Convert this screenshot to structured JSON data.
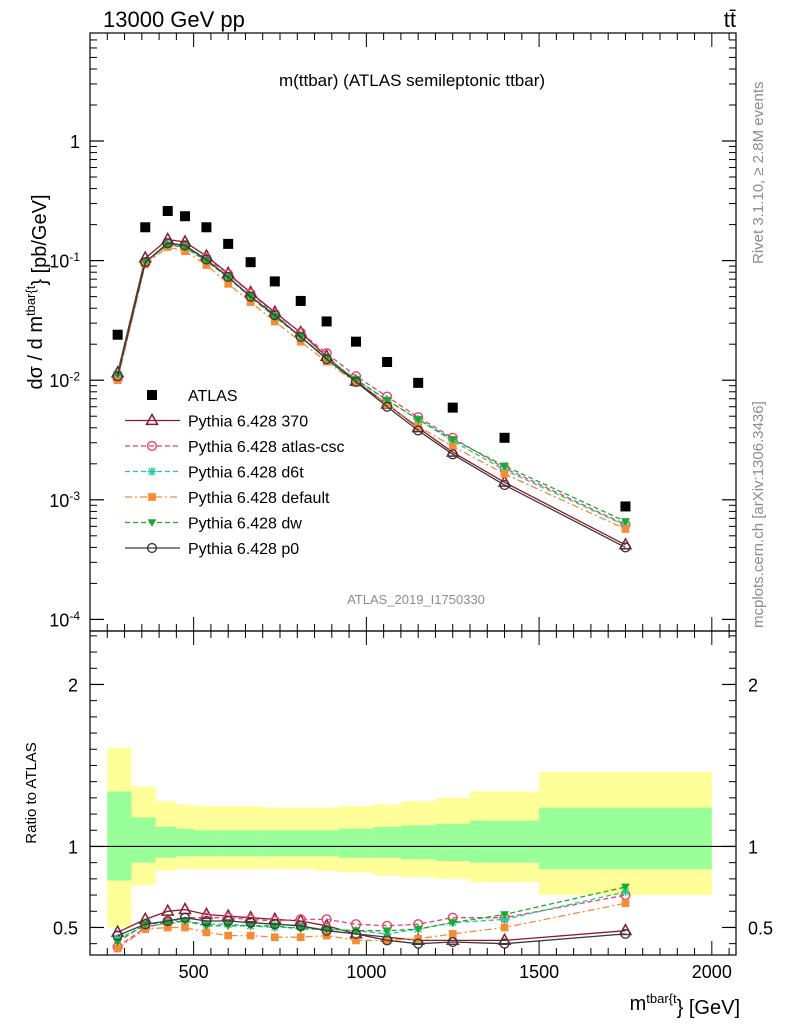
{
  "header": {
    "left": "13000 GeV pp",
    "right": "tt̄"
  },
  "side_labels": {
    "top": "Rivet 3.1.10, ≥ 2.8M events",
    "bottom": "mcplots.cern.ch [arXiv:1306.3436]"
  },
  "watermark": "ATLAS_2019_I1750330",
  "chart_data": [
    {
      "type": "scatter",
      "panel": "main",
      "title": "m(ttbar) (ATLAS semileptonic ttbar)",
      "ylabel": "dσ / d m^{tbar{t}} [pb/GeV]",
      "yscale": "log",
      "xlim": [
        200,
        2070
      ],
      "ylim": [
        8e-05,
        8
      ],
      "yticks": [
        {
          "v": 1,
          "label": "1"
        },
        {
          "v": 0.1,
          "label": "10^{-1}"
        },
        {
          "v": 0.01,
          "label": "10^{-2}"
        },
        {
          "v": 0.001,
          "label": "10^{-3}"
        },
        {
          "v": 0.0001,
          "label": "10^{-4}"
        }
      ],
      "legend_position": "bottom-left",
      "x": [
        280,
        360,
        425,
        475,
        537,
        600,
        665,
        735,
        810,
        885,
        970,
        1060,
        1150,
        1250,
        1400,
        1750
      ],
      "data": {
        "name": "ATLAS",
        "color": "#000000",
        "values": [
          0.024,
          0.19,
          0.26,
          0.235,
          0.19,
          0.138,
          0.097,
          0.067,
          0.046,
          0.031,
          0.021,
          0.0142,
          0.0095,
          0.0059,
          0.0033,
          0.00088
        ]
      },
      "series": [
        {
          "name": "Pythia 6.428 370",
          "color": "#8b1a2e",
          "dash": "",
          "marker": "triangle-open",
          "values": [
            0.0115,
            0.105,
            0.15,
            0.143,
            0.109,
            0.078,
            0.054,
            0.037,
            0.025,
            0.0158,
            0.0098,
            0.0063,
            0.004,
            0.0025,
            0.0014,
            0.00042
          ]
        },
        {
          "name": "Pythia 6.428 atlas-csc",
          "color": "#e8436e",
          "dash": "5,3",
          "marker": "circle-open",
          "values": [
            0.0103,
            0.095,
            0.138,
            0.13,
            0.105,
            0.077,
            0.053,
            0.036,
            0.025,
            0.0168,
            0.0108,
            0.0073,
            0.0049,
            0.0033,
            0.00184,
            0.00062
          ]
        },
        {
          "name": "Pythia 6.428 d6t",
          "color": "#20c9a0",
          "dash": "5,3",
          "marker": "star",
          "values": [
            0.0108,
            0.097,
            0.136,
            0.128,
            0.099,
            0.072,
            0.049,
            0.034,
            0.023,
            0.0153,
            0.0102,
            0.0068,
            0.0047,
            0.0031,
            0.00178,
            0.00061
          ]
        },
        {
          "name": "Pythia 6.428 default",
          "color": "#f58b33",
          "dash": "7,3,2,3",
          "marker": "square",
          "values": [
            0.01,
            0.093,
            0.13,
            0.12,
            0.092,
            0.064,
            0.045,
            0.031,
            0.021,
            0.0143,
            0.0095,
            0.0063,
            0.0041,
            0.0028,
            0.00165,
            0.00057
          ]
        },
        {
          "name": "Pythia 6.428 dw",
          "color": "#1aaa2a",
          "dash": "5,3",
          "marker": "triangle-down",
          "values": [
            0.0112,
            0.098,
            0.135,
            0.13,
            0.1,
            0.072,
            0.05,
            0.034,
            0.023,
            0.0154,
            0.0101,
            0.0068,
            0.0047,
            0.0032,
            0.00192,
            0.00066
          ]
        },
        {
          "name": "Pythia 6.428 p0",
          "color": "#3a3a3a",
          "dash": "",
          "marker": "circle-open",
          "values": [
            0.0108,
            0.097,
            0.14,
            0.134,
            0.102,
            0.073,
            0.05,
            0.035,
            0.023,
            0.015,
            0.0097,
            0.006,
            0.0038,
            0.0024,
            0.00133,
            0.0004
          ]
        }
      ]
    },
    {
      "type": "line",
      "panel": "ratio",
      "ylabel": "Ratio to ATLAS",
      "xlabel": "m^{tbar{t}} [GeV]",
      "xlim": [
        200,
        2070
      ],
      "ylim": [
        0.33,
        2.33
      ],
      "xticks": [
        500,
        1000,
        1500,
        2000
      ],
      "yticks": [
        {
          "v": 0.5,
          "label": "0.5"
        },
        {
          "v": 1,
          "label": "1"
        },
        {
          "v": 2,
          "label": "2"
        }
      ],
      "bands": [
        {
          "lo": 250,
          "hi": 320,
          "inner": [
            0.79,
            1.34
          ],
          "outer": [
            0.5,
            1.61
          ]
        },
        {
          "lo": 320,
          "hi": 390,
          "inner": [
            0.9,
            1.18
          ],
          "outer": [
            0.76,
            1.37
          ]
        },
        {
          "lo": 390,
          "hi": 450,
          "inner": [
            0.93,
            1.12
          ],
          "outer": [
            0.85,
            1.28
          ]
        },
        {
          "lo": 450,
          "hi": 500,
          "inner": [
            0.94,
            1.11
          ],
          "outer": [
            0.86,
            1.26
          ]
        },
        {
          "lo": 500,
          "hi": 570,
          "inner": [
            0.94,
            1.1
          ],
          "outer": [
            0.86,
            1.25
          ]
        },
        {
          "lo": 570,
          "hi": 630,
          "inner": [
            0.94,
            1.1
          ],
          "outer": [
            0.86,
            1.25
          ]
        },
        {
          "lo": 630,
          "hi": 700,
          "inner": [
            0.94,
            1.1
          ],
          "outer": [
            0.86,
            1.25
          ]
        },
        {
          "lo": 700,
          "hi": 770,
          "inner": [
            0.94,
            1.1
          ],
          "outer": [
            0.86,
            1.24
          ]
        },
        {
          "lo": 770,
          "hi": 850,
          "inner": [
            0.94,
            1.1
          ],
          "outer": [
            0.86,
            1.24
          ]
        },
        {
          "lo": 850,
          "hi": 920,
          "inner": [
            0.94,
            1.1
          ],
          "outer": [
            0.85,
            1.24
          ]
        },
        {
          "lo": 920,
          "hi": 1020,
          "inner": [
            0.93,
            1.11
          ],
          "outer": [
            0.84,
            1.25
          ]
        },
        {
          "lo": 1020,
          "hi": 1100,
          "inner": [
            0.93,
            1.12
          ],
          "outer": [
            0.82,
            1.26
          ]
        },
        {
          "lo": 1100,
          "hi": 1200,
          "inner": [
            0.92,
            1.13
          ],
          "outer": [
            0.81,
            1.28
          ]
        },
        {
          "lo": 1200,
          "hi": 1300,
          "inner": [
            0.91,
            1.14
          ],
          "outer": [
            0.8,
            1.3
          ]
        },
        {
          "lo": 1300,
          "hi": 1500,
          "inner": [
            0.9,
            1.16
          ],
          "outer": [
            0.78,
            1.34
          ]
        },
        {
          "lo": 1500,
          "hi": 2000,
          "inner": [
            0.86,
            1.24
          ],
          "outer": [
            0.7,
            1.46
          ]
        }
      ],
      "x": [
        280,
        360,
        425,
        475,
        537,
        600,
        665,
        735,
        810,
        885,
        970,
        1060,
        1150,
        1250,
        1400,
        1750
      ],
      "series": [
        {
          "name": "Pythia 6.428 370",
          "color": "#8b1a2e",
          "dash": "",
          "marker": "triangle-open",
          "values": [
            0.47,
            0.55,
            0.6,
            0.61,
            0.58,
            0.57,
            0.56,
            0.55,
            0.54,
            0.51,
            0.46,
            0.44,
            0.42,
            0.42,
            0.42,
            0.48
          ]
        },
        {
          "name": "Pythia 6.428 atlas-csc",
          "color": "#e8436e",
          "dash": "5,3",
          "marker": "circle-open",
          "values": [
            0.38,
            0.5,
            0.53,
            0.56,
            0.56,
            0.56,
            0.55,
            0.54,
            0.55,
            0.55,
            0.52,
            0.51,
            0.52,
            0.56,
            0.56,
            0.7
          ]
        },
        {
          "name": "Pythia 6.428 d6t",
          "color": "#20c9a0",
          "dash": "5,3",
          "marker": "star",
          "values": [
            0.43,
            0.51,
            0.52,
            0.54,
            0.52,
            0.52,
            0.51,
            0.5,
            0.5,
            0.49,
            0.48,
            0.46,
            0.49,
            0.53,
            0.55,
            0.72
          ]
        },
        {
          "name": "Pythia 6.428 default",
          "color": "#f58b33",
          "dash": "7,3,2,3",
          "marker": "square",
          "values": [
            0.37,
            0.49,
            0.5,
            0.5,
            0.47,
            0.45,
            0.45,
            0.44,
            0.44,
            0.45,
            0.42,
            0.42,
            0.43,
            0.46,
            0.5,
            0.65
          ]
        },
        {
          "name": "Pythia 6.428 dw",
          "color": "#1aaa2a",
          "dash": "5,3",
          "marker": "triangle-down",
          "values": [
            0.41,
            0.52,
            0.53,
            0.54,
            0.51,
            0.51,
            0.51,
            0.51,
            0.49,
            0.49,
            0.48,
            0.48,
            0.49,
            0.53,
            0.58,
            0.75
          ]
        },
        {
          "name": "Pythia 6.428 p0",
          "color": "#3a3a3a",
          "dash": "",
          "marker": "circle-open",
          "values": [
            0.45,
            0.52,
            0.54,
            0.56,
            0.54,
            0.54,
            0.53,
            0.52,
            0.51,
            0.48,
            0.46,
            0.42,
            0.4,
            0.41,
            0.4,
            0.46
          ]
        }
      ]
    }
  ]
}
